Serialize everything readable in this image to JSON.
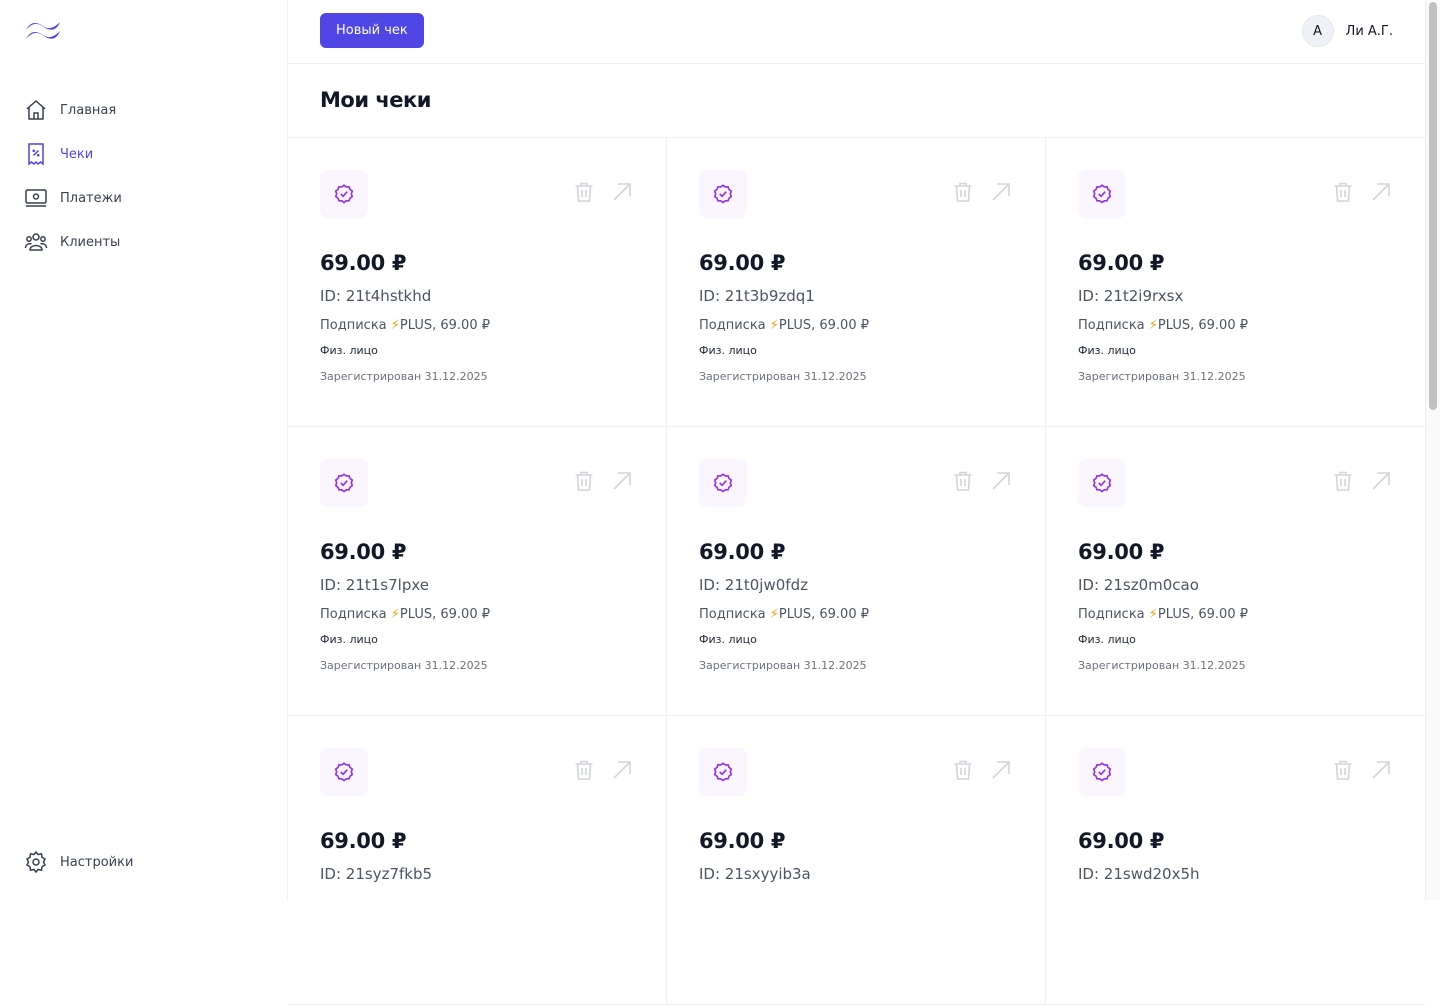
{
  "sidebar": {
    "items": [
      {
        "label": "Главная",
        "icon": "home-icon"
      },
      {
        "label": "Чеки",
        "icon": "receipt-icon",
        "active": true
      },
      {
        "label": "Платежи",
        "icon": "banknote-icon"
      },
      {
        "label": "Клиенты",
        "icon": "users-icon"
      }
    ],
    "settings_label": "Настройки"
  },
  "header": {
    "new_button": "Новый чек",
    "avatar_letter": "А",
    "user_name": "Ли А.Г."
  },
  "page_title": "Мои чеки",
  "colors": {
    "accent": "#4f46e5",
    "badge_icon": "#9333ea",
    "badge_bg": "#faf5ff"
  },
  "receipts": [
    {
      "amount": "69.00 ₽",
      "id": "ID: 21t4hstkhd",
      "desc_prefix": "Подписка ",
      "bolt": "⚡",
      "desc_suffix": "PLUS, 69.00 ₽",
      "kind": "Физ. лицо",
      "date": "Зарегистрирован 31.12.2025"
    },
    {
      "amount": "69.00 ₽",
      "id": "ID: 21t3b9zdq1",
      "desc_prefix": "Подписка ",
      "bolt": "⚡",
      "desc_suffix": "PLUS, 69.00 ₽",
      "kind": "Физ. лицо",
      "date": "Зарегистрирован 31.12.2025"
    },
    {
      "amount": "69.00 ₽",
      "id": "ID: 21t2i9rxsx",
      "desc_prefix": "Подписка ",
      "bolt": "⚡",
      "desc_suffix": "PLUS, 69.00 ₽",
      "kind": "Физ. лицо",
      "date": "Зарегистрирован 31.12.2025"
    },
    {
      "amount": "69.00 ₽",
      "id": "ID: 21t1s7lpxe",
      "desc_prefix": "Подписка ",
      "bolt": "⚡",
      "desc_suffix": "PLUS, 69.00 ₽",
      "kind": "Физ. лицо",
      "date": "Зарегистрирован 31.12.2025"
    },
    {
      "amount": "69.00 ₽",
      "id": "ID: 21t0jw0fdz",
      "desc_prefix": "Подписка ",
      "bolt": "⚡",
      "desc_suffix": "PLUS, 69.00 ₽",
      "kind": "Физ. лицо",
      "date": "Зарегистрирован 31.12.2025"
    },
    {
      "amount": "69.00 ₽",
      "id": "ID: 21sz0m0cao",
      "desc_prefix": "Подписка ",
      "bolt": "⚡",
      "desc_suffix": "PLUS, 69.00 ₽",
      "kind": "Физ. лицо",
      "date": "Зарегистрирован 31.12.2025"
    },
    {
      "amount": "69.00 ₽",
      "id": "ID: 21syz7fkb5"
    },
    {
      "amount": "69.00 ₽",
      "id": "ID: 21sxyyib3a"
    },
    {
      "amount": "69.00 ₽",
      "id": "ID: 21swd20x5h"
    }
  ]
}
